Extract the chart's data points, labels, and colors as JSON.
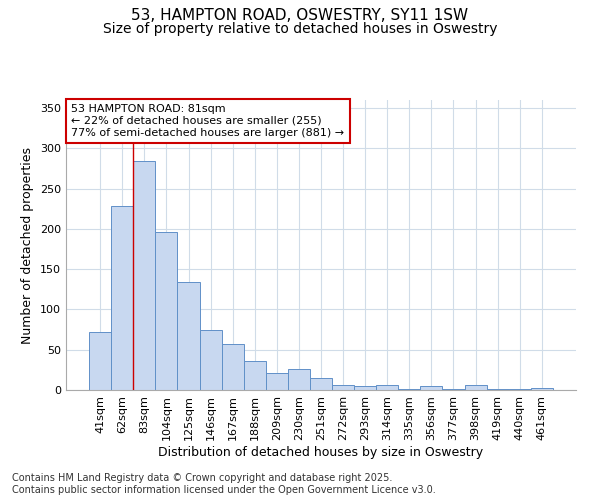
{
  "title": "53, HAMPTON ROAD, OSWESTRY, SY11 1SW",
  "subtitle": "Size of property relative to detached houses in Oswestry",
  "xlabel": "Distribution of detached houses by size in Oswestry",
  "ylabel": "Number of detached properties",
  "bar_color": "#c8d8f0",
  "bar_edge_color": "#6090c8",
  "background_color": "#ffffff",
  "plot_bg_color": "#ffffff",
  "grid_color": "#d0dce8",
  "categories": [
    "41sqm",
    "62sqm",
    "83sqm",
    "104sqm",
    "125sqm",
    "146sqm",
    "167sqm",
    "188sqm",
    "209sqm",
    "230sqm",
    "251sqm",
    "272sqm",
    "293sqm",
    "314sqm",
    "335sqm",
    "356sqm",
    "377sqm",
    "398sqm",
    "419sqm",
    "440sqm",
    "461sqm"
  ],
  "values": [
    72,
    229,
    284,
    196,
    134,
    75,
    57,
    36,
    21,
    26,
    15,
    6,
    5,
    6,
    1,
    5,
    1,
    6,
    1,
    1,
    2
  ],
  "ylim": [
    0,
    360
  ],
  "yticks": [
    0,
    50,
    100,
    150,
    200,
    250,
    300,
    350
  ],
  "red_line_x": 1.5,
  "annotation_text": "53 HAMPTON ROAD: 81sqm\n← 22% of detached houses are smaller (255)\n77% of semi-detached houses are larger (881) →",
  "annotation_box_color": "#ffffff",
  "annotation_box_edge_color": "#cc0000",
  "footer_text": "Contains HM Land Registry data © Crown copyright and database right 2025.\nContains public sector information licensed under the Open Government Licence v3.0.",
  "title_fontsize": 11,
  "subtitle_fontsize": 10,
  "axis_label_fontsize": 9,
  "tick_fontsize": 8,
  "annotation_fontsize": 8,
  "footer_fontsize": 7
}
